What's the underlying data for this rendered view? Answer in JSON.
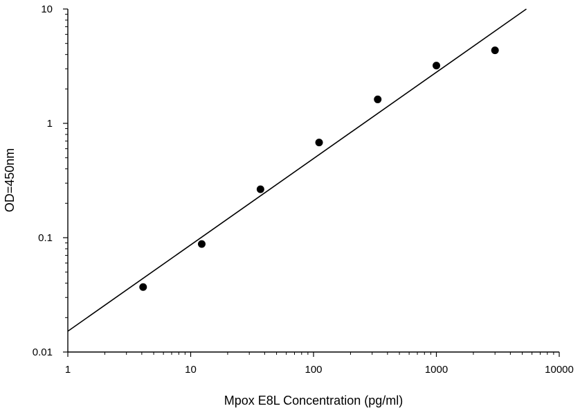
{
  "chart_data": {
    "type": "scatter",
    "xlabel": "Mpox E8L Concentration (pg/ml)",
    "ylabel": "OD=450nm",
    "x_scale": "log",
    "y_scale": "log",
    "xlim": [
      1,
      10000
    ],
    "ylim": [
      0.01,
      10
    ],
    "x_ticks": [
      {
        "value": 1,
        "label": "1"
      },
      {
        "value": 10,
        "label": "10"
      },
      {
        "value": 100,
        "label": "100"
      },
      {
        "value": 1000,
        "label": "1000"
      },
      {
        "value": 10000,
        "label": "10000"
      }
    ],
    "y_ticks": [
      {
        "value": 0.01,
        "label": "0.01"
      },
      {
        "value": 0.1,
        "label": "0.1"
      },
      {
        "value": 1,
        "label": "1"
      },
      {
        "value": 10,
        "label": "10"
      }
    ],
    "grid": false,
    "series": [
      {
        "points": [
          {
            "x": 4.1,
            "y": 0.037
          },
          {
            "x": 12.3,
            "y": 0.088
          },
          {
            "x": 37,
            "y": 0.265
          },
          {
            "x": 111,
            "y": 0.68
          },
          {
            "x": 333,
            "y": 1.62
          },
          {
            "x": 1000,
            "y": 3.2
          },
          {
            "x": 3000,
            "y": 4.35
          }
        ],
        "color": "#000000"
      }
    ],
    "fit_line": {
      "type": "linear-log-log",
      "points": [
        {
          "x": 1,
          "y": 0.0152
        },
        {
          "x": 5400,
          "y": 10
        }
      ],
      "color": "#000000"
    }
  }
}
